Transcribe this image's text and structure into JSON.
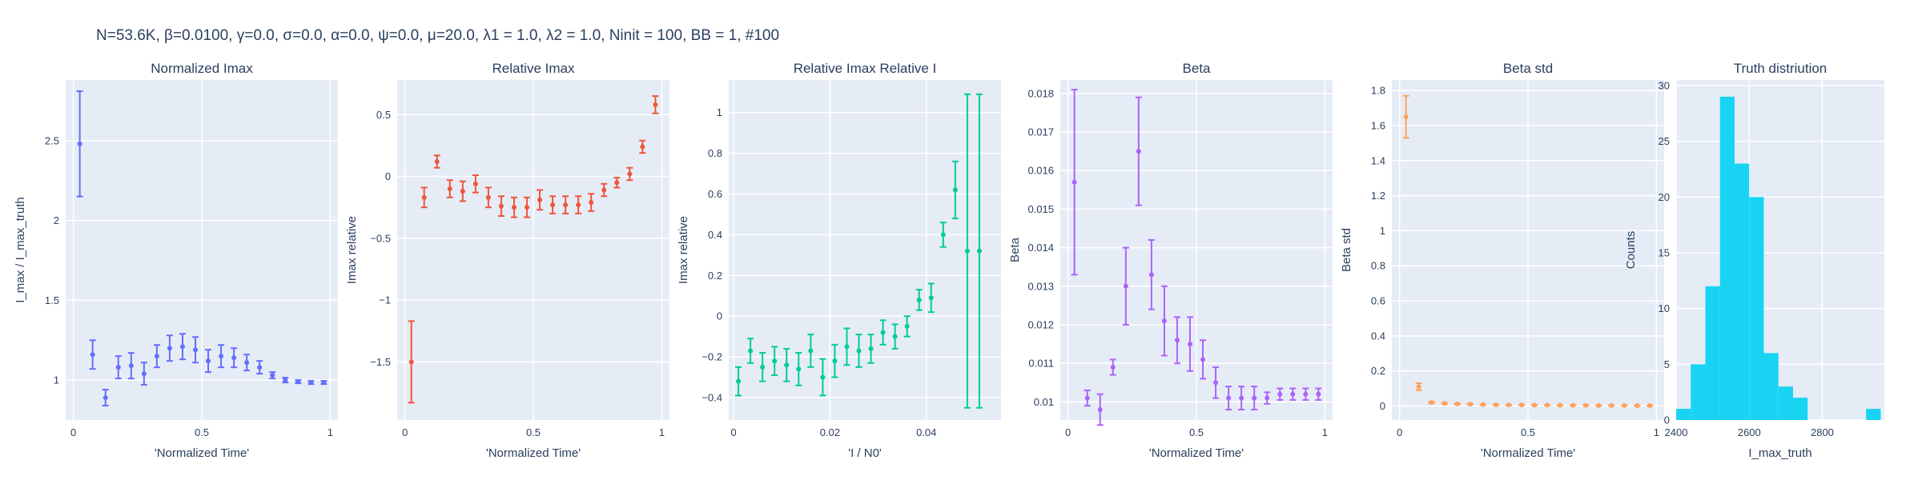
{
  "figure": {
    "title": "N=53.6K, β=0.0100, γ=0.0, σ=0.0,  α=0.0, ψ=0.0, μ=20.0, λ1 = 1.0, λ2 = 1.0, Ninit = 100, BB = 1, #100"
  },
  "chart_data": [
    {
      "type": "scatter",
      "title": "Normalized Imax",
      "xlabel": "'Normalized Time'",
      "ylabel": "I_max / I_max_truth",
      "color": "#636efa",
      "xlim": [
        -0.03,
        1.03
      ],
      "ylim": [
        0.75,
        2.88
      ],
      "xticks": [
        0,
        0.5,
        1
      ],
      "xtick_labels": [
        "0",
        "0.5",
        "1"
      ],
      "yticks": [
        1,
        1.5,
        2,
        2.5
      ],
      "ytick_labels": [
        "1",
        "1.5",
        "2",
        "2.5"
      ],
      "series": [
        {
          "x": [
            0.025,
            0.075,
            0.125,
            0.175,
            0.225,
            0.275,
            0.325,
            0.375,
            0.425,
            0.475,
            0.525,
            0.575,
            0.625,
            0.675,
            0.725,
            0.775,
            0.825,
            0.875,
            0.925,
            0.975
          ],
          "y": [
            2.48,
            1.16,
            0.89,
            1.08,
            1.09,
            1.04,
            1.15,
            1.2,
            1.21,
            1.19,
            1.12,
            1.15,
            1.14,
            1.11,
            1.08,
            1.03,
            1.0,
            0.99,
            0.985,
            0.985
          ],
          "err": [
            0.33,
            0.09,
            0.05,
            0.07,
            0.08,
            0.07,
            0.07,
            0.08,
            0.08,
            0.08,
            0.07,
            0.07,
            0.06,
            0.05,
            0.04,
            0.02,
            0.015,
            0.01,
            0.01,
            0.01
          ]
        }
      ]
    },
    {
      "type": "scatter",
      "title": "Relative Imax",
      "xlabel": "'Normalized Time'",
      "ylabel": "Imax relative",
      "color": "#ef553b",
      "xlim": [
        -0.03,
        1.03
      ],
      "ylim": [
        -1.97,
        0.78
      ],
      "xticks": [
        0,
        0.5,
        1
      ],
      "xtick_labels": [
        "0",
        "0.5",
        "1"
      ],
      "yticks": [
        -1.5,
        -1,
        -0.5,
        0,
        0.5
      ],
      "ytick_labels": [
        "−1.5",
        "−1",
        "−0.5",
        "0",
        "0.5"
      ],
      "series": [
        {
          "x": [
            0.025,
            0.075,
            0.125,
            0.175,
            0.225,
            0.275,
            0.325,
            0.375,
            0.425,
            0.475,
            0.525,
            0.575,
            0.625,
            0.675,
            0.725,
            0.775,
            0.825,
            0.875,
            0.925,
            0.975
          ],
          "y": [
            -1.5,
            -0.17,
            0.12,
            -0.1,
            -0.12,
            -0.06,
            -0.17,
            -0.24,
            -0.25,
            -0.25,
            -0.19,
            -0.23,
            -0.23,
            -0.23,
            -0.21,
            -0.11,
            -0.05,
            0.02,
            0.24,
            0.58
          ],
          "err": [
            0.33,
            0.08,
            0.05,
            0.07,
            0.08,
            0.07,
            0.08,
            0.08,
            0.08,
            0.08,
            0.08,
            0.07,
            0.07,
            0.07,
            0.07,
            0.05,
            0.04,
            0.05,
            0.05,
            0.07
          ]
        }
      ]
    },
    {
      "type": "scatter",
      "title": "Relative Imax Relative I",
      "xlabel": "'I / N0'",
      "ylabel": "Imax relative",
      "color": "#00cc96",
      "xlim": [
        -0.001,
        0.0555
      ],
      "ylim": [
        -0.51,
        1.16
      ],
      "xticks": [
        0,
        0.02,
        0.04
      ],
      "xtick_labels": [
        "0",
        "0.02",
        "0.04"
      ],
      "yticks": [
        -0.4,
        -0.2,
        0,
        0.2,
        0.4,
        0.6,
        0.8,
        1
      ],
      "ytick_labels": [
        "−0.4",
        "−0.2",
        "0",
        "0.2",
        "0.4",
        "0.6",
        "0.8",
        "1"
      ],
      "series": [
        {
          "x": [
            0.001,
            0.0035,
            0.006,
            0.0085,
            0.011,
            0.0135,
            0.016,
            0.0185,
            0.021,
            0.0235,
            0.026,
            0.0285,
            0.031,
            0.0335,
            0.036,
            0.0385,
            0.041,
            0.0435,
            0.046,
            0.0485,
            0.051
          ],
          "y": [
            -0.32,
            -0.17,
            -0.25,
            -0.22,
            -0.24,
            -0.26,
            -0.17,
            -0.3,
            -0.22,
            -0.15,
            -0.17,
            -0.16,
            -0.08,
            -0.1,
            -0.05,
            0.08,
            0.09,
            0.4,
            0.62,
            0.32,
            0.32
          ],
          "err": [
            0.07,
            0.06,
            0.07,
            0.07,
            0.08,
            0.08,
            0.08,
            0.09,
            0.08,
            0.09,
            0.08,
            0.07,
            0.06,
            0.06,
            0.05,
            0.05,
            0.07,
            0.06,
            0.14,
            0.77,
            0.77
          ]
        }
      ]
    },
    {
      "type": "scatter",
      "title": "Beta",
      "xlabel": "'Normalized Time'",
      "ylabel": "Beta",
      "color": "#ab63fa",
      "xlim": [
        -0.03,
        1.03
      ],
      "ylim": [
        0.00953,
        0.01835
      ],
      "xticks": [
        0,
        0.5,
        1
      ],
      "xtick_labels": [
        "0",
        "0.5",
        "1"
      ],
      "yticks": [
        0.01,
        0.011,
        0.012,
        0.013,
        0.014,
        0.015,
        0.016,
        0.017,
        0.018
      ],
      "ytick_labels": [
        "0.01",
        "0.011",
        "0.012",
        "0.013",
        "0.014",
        "0.015",
        "0.016",
        "0.017",
        "0.018"
      ],
      "series": [
        {
          "x": [
            0.025,
            0.075,
            0.125,
            0.175,
            0.225,
            0.275,
            0.325,
            0.375,
            0.425,
            0.475,
            0.525,
            0.575,
            0.625,
            0.675,
            0.725,
            0.775,
            0.825,
            0.875,
            0.925,
            0.975
          ],
          "y": [
            0.0157,
            0.0101,
            0.0098,
            0.0109,
            0.013,
            0.0165,
            0.0133,
            0.0121,
            0.0116,
            0.0115,
            0.0111,
            0.0105,
            0.0101,
            0.0101,
            0.0101,
            0.0101,
            0.0102,
            0.0102,
            0.0102,
            0.0102
          ],
          "err": [
            0.0024,
            0.0002,
            0.0004,
            0.0002,
            0.001,
            0.0014,
            0.0009,
            0.0009,
            0.0006,
            0.0007,
            0.0005,
            0.0004,
            0.0003,
            0.0003,
            0.0003,
            0.00015,
            0.00015,
            0.00015,
            0.00015,
            0.00015
          ]
        }
      ]
    },
    {
      "type": "scatter",
      "title": "Beta std",
      "xlabel": "'Normalized Time'",
      "ylabel": "Beta std",
      "color": "#ffa15a",
      "xlim": [
        -0.03,
        1.03
      ],
      "ylim": [
        -0.08,
        1.86
      ],
      "xticks": [
        0,
        0.5,
        1
      ],
      "xtick_labels": [
        "0",
        "0.5",
        "1"
      ],
      "yticks": [
        0,
        0.2,
        0.4,
        0.6,
        0.8,
        1,
        1.2,
        1.4,
        1.6,
        1.8
      ],
      "ytick_labels": [
        "0",
        "0.2",
        "0.4",
        "0.6",
        "0.8",
        "1",
        "1.2",
        "1.4",
        "1.6",
        "1.8"
      ],
      "series": [
        {
          "x": [
            0.025,
            0.075,
            0.125,
            0.175,
            0.225,
            0.275,
            0.325,
            0.375,
            0.425,
            0.475,
            0.525,
            0.575,
            0.625,
            0.675,
            0.725,
            0.775,
            0.825,
            0.875,
            0.925,
            0.975
          ],
          "y": [
            1.65,
            0.11,
            0.02,
            0.015,
            0.012,
            0.01,
            0.008,
            0.007,
            0.006,
            0.006,
            0.005,
            0.005,
            0.004,
            0.004,
            0.004,
            0.003,
            0.003,
            0.003,
            0.002,
            0.002
          ],
          "err": [
            0.12,
            0.02,
            0.005,
            0.003,
            0.003,
            0.002,
            0.002,
            0.002,
            0.002,
            0.001,
            0.001,
            0.001,
            0.001,
            0.001,
            0.001,
            0.001,
            0.001,
            0.001,
            0.001,
            0.001
          ]
        }
      ]
    },
    {
      "type": "bar",
      "title": "Truth distriution",
      "xlabel": "I_max_truth",
      "ylabel": "Counts",
      "color": "#19d3f3",
      "xlim": [
        2400,
        2970
      ],
      "ylim": [
        0,
        30.5
      ],
      "xticks": [
        2400,
        2600,
        2800
      ],
      "xtick_labels": [
        "2400",
        "2600",
        "2800"
      ],
      "yticks": [
        0,
        5,
        10,
        15,
        20,
        25,
        30
      ],
      "ytick_labels": [
        "0",
        "5",
        "10",
        "15",
        "20",
        "25",
        "30"
      ],
      "bin_width": 40,
      "bin_starts": [
        2400,
        2440,
        2480,
        2520,
        2560,
        2600,
        2640,
        2680,
        2720,
        2760,
        2800,
        2840,
        2880,
        2920
      ],
      "values": [
        1,
        5,
        12,
        29,
        23,
        20,
        6,
        3,
        2,
        0,
        0,
        0,
        0,
        1
      ]
    }
  ]
}
